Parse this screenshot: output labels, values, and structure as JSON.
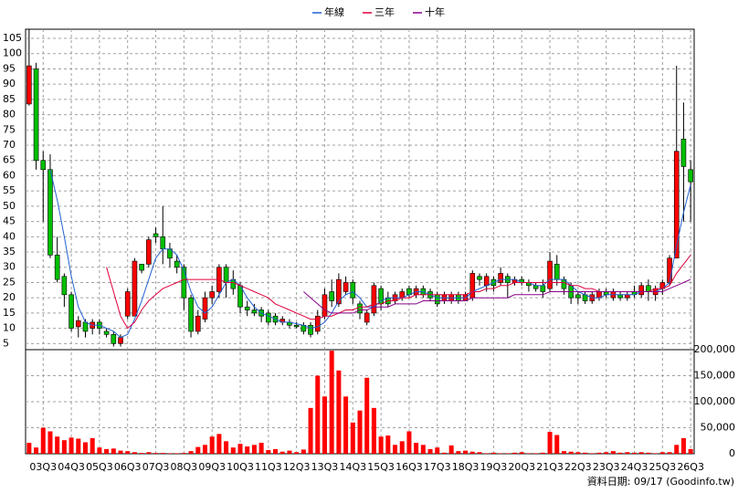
{
  "chart_data": {
    "type": "candlestick",
    "footer": "資料日期: 09/17  (Goodinfo.tw)",
    "up_color": "#ff0000",
    "down_color": "#00c000",
    "ylim": [
      3,
      108
    ],
    "yticks": [
      5,
      10,
      15,
      20,
      25,
      30,
      35,
      40,
      45,
      50,
      55,
      60,
      65,
      70,
      75,
      80,
      85,
      90,
      95,
      100,
      105
    ],
    "grid": true,
    "categories": [
      null,
      null,
      "03Q3",
      null,
      null,
      null,
      "04Q3",
      null,
      null,
      null,
      "05Q3",
      null,
      null,
      null,
      "06Q3",
      null,
      null,
      null,
      "07Q3",
      null,
      null,
      null,
      "08Q3",
      null,
      null,
      null,
      "09Q3",
      null,
      null,
      null,
      "10Q3",
      null,
      null,
      null,
      "11Q3",
      null,
      null,
      null,
      "12Q3",
      null,
      null,
      null,
      "13Q3",
      null,
      null,
      null,
      "14Q3",
      null,
      null,
      null,
      "15Q3",
      null,
      null,
      null,
      "16Q3",
      null,
      null,
      null,
      "17Q3",
      null,
      null,
      null,
      "18Q3",
      null,
      null,
      null,
      "19Q3",
      null,
      null,
      null,
      "20Q3",
      null,
      null,
      null,
      "21Q3",
      null,
      null,
      null,
      "22Q3",
      null,
      null,
      null,
      "23Q3",
      null,
      null,
      null,
      "24Q3",
      null,
      null,
      null,
      "25Q3",
      null,
      null,
      null,
      "26Q3"
    ],
    "ohlc": [
      [
        83.5,
        108,
        83,
        96
      ],
      [
        95,
        97,
        62,
        65
      ],
      [
        65,
        68,
        45,
        62
      ],
      [
        62,
        67,
        33,
        34
      ],
      [
        34,
        40,
        25,
        26
      ],
      [
        27,
        28,
        17,
        21
      ],
      [
        21,
        22,
        9,
        10
      ],
      [
        10.5,
        14,
        7,
        12.5
      ],
      [
        12,
        13,
        7,
        9
      ],
      [
        10,
        13,
        8,
        12
      ],
      [
        12,
        13,
        8,
        10
      ],
      [
        9,
        10,
        7,
        8
      ],
      [
        8,
        9,
        4,
        5
      ],
      [
        5,
        8,
        4,
        7
      ],
      [
        14,
        23,
        13,
        22
      ],
      [
        14,
        33,
        14,
        32
      ],
      [
        31,
        31,
        28,
        29
      ],
      [
        31,
        40,
        30,
        39
      ],
      [
        41,
        43,
        38,
        40
      ],
      [
        40,
        50,
        31,
        36
      ],
      [
        36,
        38,
        30,
        33
      ],
      [
        32,
        34,
        28,
        30
      ],
      [
        30,
        31,
        16,
        20
      ],
      [
        20,
        21,
        7,
        9
      ],
      [
        9,
        16,
        8,
        14
      ],
      [
        13,
        22,
        12,
        20
      ],
      [
        20,
        24,
        18,
        22
      ],
      [
        22,
        31,
        20,
        30
      ],
      [
        30,
        31,
        20,
        25
      ],
      [
        26,
        29,
        21,
        23
      ],
      [
        24,
        25,
        15,
        17
      ],
      [
        17,
        19,
        14,
        16
      ],
      [
        16,
        18,
        14,
        15
      ],
      [
        16,
        17,
        12,
        14
      ],
      [
        15,
        16,
        11,
        12
      ],
      [
        14,
        15,
        11,
        12
      ],
      [
        12,
        14,
        11,
        13
      ],
      [
        12,
        13,
        10,
        11
      ],
      [
        11,
        12,
        10,
        10.5
      ],
      [
        11,
        12,
        8,
        9
      ],
      [
        11,
        12,
        7,
        8
      ],
      [
        9,
        16,
        8,
        14
      ],
      [
        14,
        23,
        13,
        21
      ],
      [
        22,
        26,
        17,
        19
      ],
      [
        18,
        28,
        17,
        26
      ],
      [
        22,
        27,
        21,
        25
      ],
      [
        25,
        26,
        18,
        20
      ],
      [
        18,
        19,
        13,
        15
      ],
      [
        12,
        16,
        11,
        15
      ],
      [
        15,
        25,
        14,
        24
      ],
      [
        23,
        24,
        16,
        18
      ],
      [
        20,
        22,
        17,
        18
      ],
      [
        19,
        22,
        18,
        21
      ],
      [
        20,
        23,
        19,
        22
      ],
      [
        23,
        24,
        20,
        21
      ],
      [
        21,
        24,
        20,
        23
      ],
      [
        23,
        24,
        20,
        21
      ],
      [
        22,
        23,
        19,
        20
      ],
      [
        21,
        22,
        17,
        18
      ],
      [
        19,
        22,
        18,
        21
      ],
      [
        19,
        22,
        18,
        21
      ],
      [
        21,
        22,
        18,
        19
      ],
      [
        19,
        22,
        19,
        21
      ],
      [
        20,
        29,
        19,
        28
      ],
      [
        27,
        28,
        24,
        26
      ],
      [
        24,
        28,
        22,
        27
      ],
      [
        26,
        27,
        22,
        24
      ],
      [
        25,
        30,
        24,
        28
      ],
      [
        27,
        28,
        20,
        25
      ],
      [
        25,
        27,
        24,
        26
      ],
      [
        26,
        27,
        24,
        25
      ],
      [
        25,
        26,
        22,
        24
      ],
      [
        24,
        25,
        22,
        23
      ],
      [
        24,
        26,
        20,
        22
      ],
      [
        23,
        35,
        22,
        32
      ],
      [
        31,
        34,
        24,
        26
      ],
      [
        26,
        27,
        21,
        23
      ],
      [
        24,
        25,
        18,
        20
      ],
      [
        21,
        22,
        18,
        20
      ],
      [
        21,
        22,
        18,
        19
      ],
      [
        19,
        22,
        18,
        21
      ],
      [
        20,
        23,
        19,
        22
      ],
      [
        22,
        23,
        20,
        21
      ],
      [
        20,
        23,
        19,
        22
      ],
      [
        21,
        22,
        19,
        20
      ],
      [
        20,
        22,
        19,
        21
      ],
      [
        22,
        24,
        20,
        21
      ],
      [
        21,
        25,
        20,
        24
      ],
      [
        24,
        26,
        19,
        22
      ],
      [
        21,
        24,
        19,
        23
      ],
      [
        23,
        26,
        21,
        25
      ],
      [
        25,
        34,
        24,
        33
      ],
      [
        33,
        96,
        33,
        68
      ],
      [
        72,
        84,
        45,
        63
      ],
      [
        62,
        65,
        45,
        58
      ]
    ],
    "series": [
      {
        "name": "年線",
        "color": "#1f5fd0",
        "values": [
          null,
          null,
          null,
          62,
          52,
          40,
          27,
          17,
          12,
          11,
          11,
          10,
          9,
          7,
          8,
          13,
          19,
          26,
          33,
          36,
          36,
          34,
          29,
          22,
          17,
          15,
          17,
          21,
          25,
          26,
          24,
          20,
          17,
          15,
          14,
          13,
          12,
          12,
          11.5,
          11,
          10,
          10.5,
          12,
          15,
          19,
          21,
          22,
          20,
          17,
          17,
          19,
          20,
          20,
          20,
          21,
          22,
          22,
          21,
          20,
          20,
          20,
          20,
          20,
          22,
          23,
          24,
          25,
          26,
          26,
          26,
          25,
          25,
          24,
          24,
          26,
          26,
          26,
          24,
          22,
          21,
          20,
          20,
          21,
          21,
          21,
          21,
          21,
          22,
          22,
          22,
          23,
          25,
          37,
          48,
          57
        ]
      },
      {
        "name": "三年",
        "color": "#e0003c",
        "values": [
          null,
          null,
          null,
          null,
          null,
          null,
          null,
          null,
          null,
          null,
          null,
          30,
          22,
          14,
          10,
          12,
          16,
          19,
          21,
          23,
          24,
          25,
          26,
          26,
          26,
          26,
          26,
          26,
          25,
          25,
          24,
          23,
          22,
          21,
          20,
          18,
          17,
          16,
          15,
          14,
          13,
          13,
          14,
          14,
          15,
          16,
          16,
          17,
          17,
          18,
          18,
          19,
          19,
          20,
          20,
          21,
          21,
          21,
          21,
          21,
          21,
          21,
          21,
          22,
          22,
          23,
          23,
          24,
          24,
          25,
          25,
          25,
          25,
          25,
          25,
          25,
          25,
          24,
          24,
          23,
          23,
          22,
          22,
          22,
          22,
          22,
          22,
          22,
          22,
          23,
          23,
          24,
          28,
          31,
          34
        ]
      },
      {
        "name": "十年",
        "color": "#8b008b",
        "values": [
          null,
          null,
          null,
          null,
          null,
          null,
          null,
          null,
          null,
          null,
          null,
          null,
          null,
          null,
          null,
          null,
          null,
          null,
          null,
          null,
          null,
          null,
          null,
          null,
          null,
          null,
          null,
          null,
          null,
          null,
          null,
          null,
          null,
          null,
          null,
          null,
          null,
          null,
          null,
          22,
          20,
          18,
          16,
          15,
          15,
          15,
          15,
          16,
          16,
          17,
          17,
          17,
          18,
          18,
          18,
          18,
          19,
          19,
          19,
          19,
          19,
          19,
          19,
          20,
          20,
          20,
          20,
          20,
          20,
          21,
          21,
          21,
          21,
          21,
          22,
          22,
          22,
          22,
          22,
          22,
          22,
          22,
          22,
          22,
          22,
          22,
          22,
          22,
          22,
          22,
          22,
          23,
          24,
          25,
          26
        ]
      }
    ],
    "volume": {
      "color": "#ff0000",
      "ylim": [
        0,
        200000
      ],
      "yticks": [
        0,
        {
          "value": 50000,
          "label": "50,000"
        },
        {
          "value": 100000,
          "label": "100,000"
        },
        {
          "value": 150000,
          "label": "150,000"
        },
        {
          "value": 200000,
          "label": "200,000"
        }
      ],
      "values": [
        21000,
        12000,
        50000,
        43000,
        33000,
        26000,
        31000,
        29000,
        22000,
        30000,
        12000,
        9000,
        10000,
        6000,
        5000,
        3000,
        1500,
        3000,
        1500,
        1500,
        1000,
        1000,
        1500,
        5000,
        13000,
        17000,
        33000,
        38000,
        24000,
        12000,
        19000,
        14000,
        17000,
        21000,
        7000,
        9000,
        4000,
        6000,
        3000,
        8000,
        88000,
        150000,
        110000,
        198000,
        160000,
        110000,
        60000,
        83000,
        146000,
        88000,
        33000,
        35000,
        17000,
        24000,
        43000,
        21000,
        17000,
        9000,
        12000,
        2000,
        16000,
        5000,
        6000,
        4000,
        3000,
        1000,
        2000,
        1000,
        1000,
        2000,
        3000,
        1000,
        1000,
        2000,
        42000,
        36000,
        5000,
        4000,
        3000,
        2000,
        1000,
        2000,
        3000,
        5000,
        2000,
        3000,
        2000,
        3000,
        2000,
        1000,
        3000,
        3000,
        17000,
        30000,
        9000
      ]
    }
  }
}
